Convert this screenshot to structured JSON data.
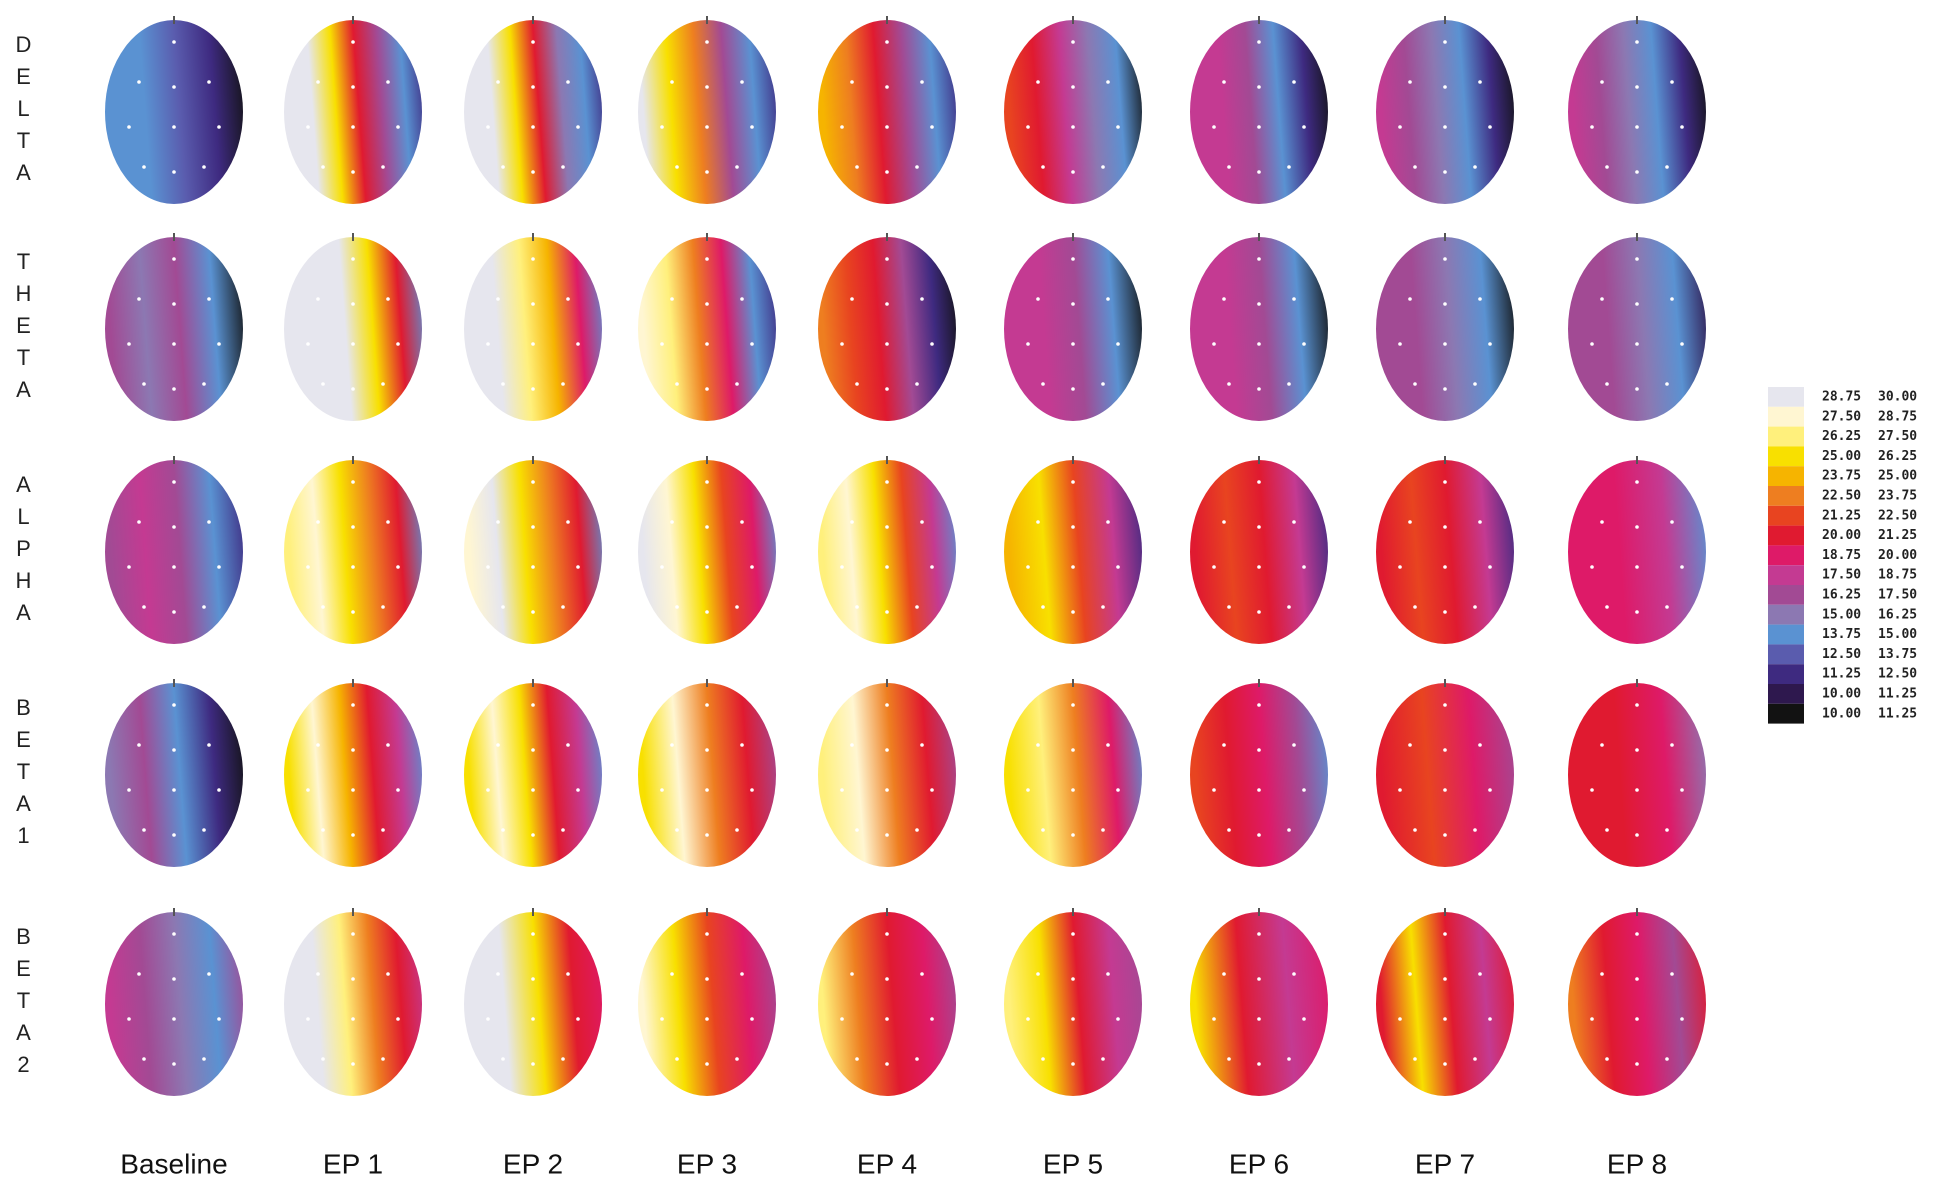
{
  "rows": [
    "DELTA",
    "THETA",
    "ALPHA",
    "BETA1",
    "BETA2"
  ],
  "columns": [
    "Baseline",
    "EP 1",
    "EP 2",
    "EP 3",
    "EP 4",
    "EP 5",
    "EP 6",
    "EP 7",
    "EP 8"
  ],
  "legend": [
    {
      "color": "#e6e6ee",
      "low": "28.75",
      "high": "30.00"
    },
    {
      "color": "#fff6d2",
      "low": "27.50",
      "high": "28.75"
    },
    {
      "color": "#fff07c",
      "low": "26.25",
      "high": "27.50"
    },
    {
      "color": "#f8e000",
      "low": "25.00",
      "high": "26.25"
    },
    {
      "color": "#f6b400",
      "low": "23.75",
      "high": "25.00"
    },
    {
      "color": "#ee7e20",
      "low": "22.50",
      "high": "23.75"
    },
    {
      "color": "#e84420",
      "low": "21.25",
      "high": "22.50"
    },
    {
      "color": "#e01a30",
      "low": "20.00",
      "high": "21.25"
    },
    {
      "color": "#de1a68",
      "low": "18.75",
      "high": "20.00"
    },
    {
      "color": "#c43a92",
      "low": "17.50",
      "high": "18.75"
    },
    {
      "color": "#a24a94",
      "low": "16.25",
      "high": "17.50"
    },
    {
      "color": "#8c78b2",
      "low": "15.00",
      "high": "16.25"
    },
    {
      "color": "#5a92d2",
      "low": "13.75",
      "high": "15.00"
    },
    {
      "color": "#5a5cae",
      "low": "12.50",
      "high": "13.75"
    },
    {
      "color": "#3e2a80",
      "low": "11.25",
      "high": "12.50"
    },
    {
      "color": "#2e184e",
      "low": "10.00",
      "high": "11.25"
    },
    {
      "color": "#121212",
      "low": "10.00",
      "high": "11.25"
    }
  ]
}
